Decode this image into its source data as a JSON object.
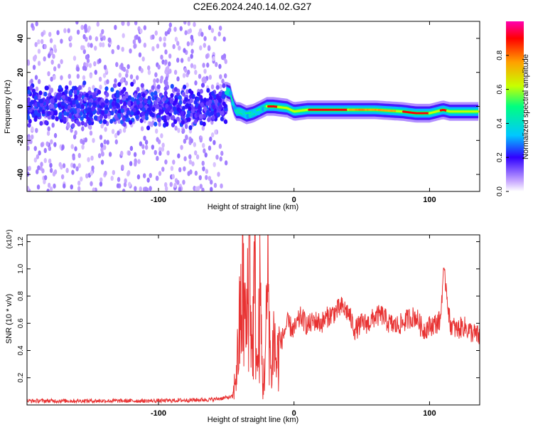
{
  "title": "C2E6.2024.240.14.02.G27",
  "chart_data": [
    {
      "type": "heatmap",
      "xlabel": "Height of straight line (km)",
      "ylabel": "Frequency (Hz)",
      "xlim": [
        -197,
        137
      ],
      "ylim": [
        -50,
        50
      ],
      "xticks": [
        -100,
        0,
        100
      ],
      "yticks": [
        -40,
        -20,
        0,
        20,
        40
      ],
      "grid": false,
      "noise_region_x": [
        -197,
        -50
      ],
      "ridge": [
        {
          "x": -50,
          "y": 9
        },
        {
          "x": -47,
          "y": 8
        },
        {
          "x": -45,
          "y": 1
        },
        {
          "x": -43,
          "y": -3
        },
        {
          "x": -40,
          "y": -3
        },
        {
          "x": -35,
          "y": -5
        },
        {
          "x": -30,
          "y": -4
        },
        {
          "x": -25,
          "y": -2
        },
        {
          "x": -20,
          "y": 0
        },
        {
          "x": -15,
          "y": 0
        },
        {
          "x": -5,
          "y": -1
        },
        {
          "x": 0,
          "y": -3
        },
        {
          "x": 10,
          "y": -2
        },
        {
          "x": 30,
          "y": -2
        },
        {
          "x": 60,
          "y": -2
        },
        {
          "x": 80,
          "y": -3
        },
        {
          "x": 90,
          "y": -4
        },
        {
          "x": 100,
          "y": -4
        },
        {
          "x": 110,
          "y": -2
        },
        {
          "x": 115,
          "y": -3
        },
        {
          "x": 137,
          "y": -3
        }
      ],
      "colorbar": {
        "label": "Normalized spectral amplitude",
        "range": [
          0.0,
          1.0
        ],
        "ticks": [
          0.0,
          0.2,
          0.4,
          0.6,
          0.8
        ],
        "colors": [
          "#ffffff",
          "#b48cff",
          "#3000ff",
          "#00c8ff",
          "#00ff80",
          "#c8ff00",
          "#ffa000",
          "#ff0000",
          "#ff00b0"
        ]
      }
    },
    {
      "type": "line",
      "xlabel": "Height of straight line (km)",
      "ylabel": "SNR (10 * v/v)",
      "y_multiplier": "(x10⁴)",
      "xlim": [
        -197,
        137
      ],
      "ylim": [
        0,
        1.25
      ],
      "xticks": [
        -100,
        0,
        100
      ],
      "yticks": [
        0.2,
        0.4,
        0.6,
        0.8,
        1.0,
        1.2
      ],
      "grid": false,
      "color": "#e83232",
      "series": [
        {
          "name": "",
          "x": [
            -197,
            -150,
            -100,
            -60,
            -45,
            -42,
            -38,
            -35,
            -33,
            -31,
            -29,
            -27,
            -25,
            -23,
            -21,
            -19,
            -17,
            -15,
            -13,
            -10,
            -5,
            0,
            5,
            10,
            15,
            20,
            25,
            30,
            35,
            40,
            45,
            50,
            55,
            60,
            65,
            70,
            75,
            80,
            85,
            90,
            95,
            100,
            105,
            108,
            110,
            112,
            115,
            120,
            125,
            130,
            137
          ],
          "y": [
            0.03,
            0.03,
            0.03,
            0.04,
            0.06,
            0.3,
            0.85,
            0.5,
            1.25,
            0.35,
            0.9,
            0.2,
            0.8,
            0.1,
            0.4,
            0.95,
            0.2,
            0.5,
            0.3,
            0.45,
            0.6,
            0.55,
            0.65,
            0.58,
            0.62,
            0.6,
            0.65,
            0.68,
            0.72,
            0.68,
            0.55,
            0.6,
            0.6,
            0.65,
            0.66,
            0.6,
            0.58,
            0.6,
            0.64,
            0.65,
            0.55,
            0.58,
            0.6,
            0.62,
            0.95,
            0.9,
            0.6,
            0.55,
            0.58,
            0.54,
            0.5
          ]
        }
      ]
    }
  ]
}
